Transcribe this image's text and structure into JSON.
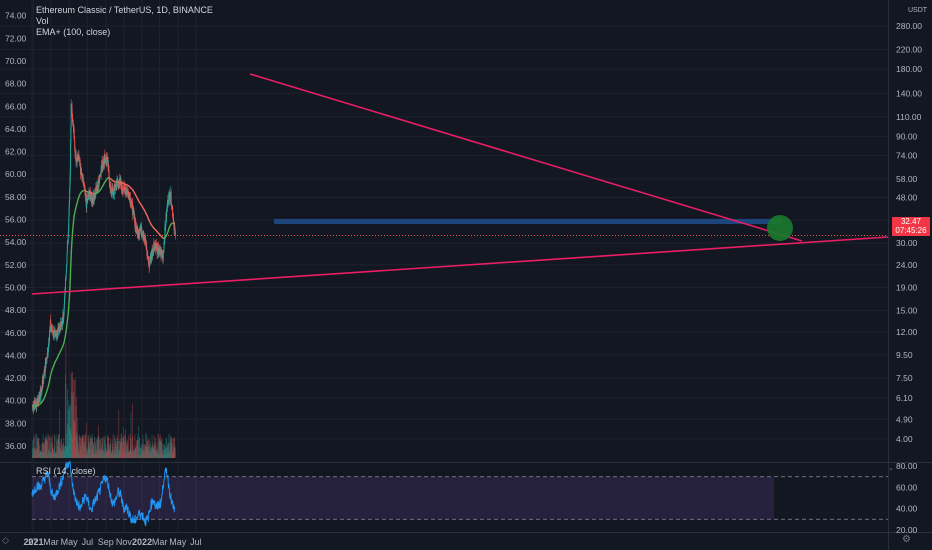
{
  "legend": {
    "title": "Ethereum Classic / TetherUS, 1D, BINANCE",
    "vol": "Vol",
    "ema": "EMA+ (100, close)"
  },
  "price_scale": {
    "currency": "USDT",
    "last_price": "32.47",
    "countdown": "07:45:26"
  },
  "rsi_legend": "RSI (14, close)",
  "colors": {
    "background": "#131722",
    "up": "#26a69a",
    "down": "#ef5350",
    "trendline": "#e91e63",
    "ema_up": "#4caf50",
    "ema_down": "#ef6c5a",
    "support_zone": "#1e4e8c",
    "rsi_line": "#2196f3",
    "rsi_band": "#7e57c2",
    "marker": "#1b7a2e"
  },
  "chart_data": [
    {
      "type": "candlestick",
      "title": "Ethereum Classic / TetherUS, 1D, BINANCE",
      "x_tick_labels": [
        "27",
        "2021",
        "Mar",
        "May",
        "Jul",
        "Sep",
        "Nov",
        "2022",
        "Mar",
        "May",
        "Jul"
      ],
      "left_axis_ticks": [
        36.0,
        38.0,
        40.0,
        42.0,
        44.0,
        46.0,
        48.0,
        50.0,
        52.0,
        54.0,
        56.0,
        58.0,
        60.0,
        62.0,
        64.0,
        66.0,
        68.0,
        70.0,
        72.0,
        74.0
      ],
      "left_axis_labels": [
        "36.00",
        "38.00",
        "40.00",
        "42.00",
        "44.00",
        "46.00",
        "48.00",
        "50.00",
        "52.00",
        "54.00",
        "56.00",
        "58.00",
        "60.00",
        "62.00",
        "64.00",
        "66.00",
        "68.00",
        "70.00",
        "72.00",
        "74.00"
      ],
      "right_axis_log_scale": true,
      "right_axis_labels": [
        "4.00",
        "4.90",
        "6.10",
        "7.50",
        "9.50",
        "12.00",
        "15.00",
        "19.00",
        "24.00",
        "30.00",
        "38.00",
        "48.00",
        "58.00",
        "74.00",
        "90.00",
        "110.00",
        "140.00",
        "180.00",
        "220.00",
        "280.00"
      ],
      "right_axis_values": [
        4.0,
        4.9,
        6.1,
        7.5,
        9.5,
        12.0,
        15.0,
        19.0,
        24.0,
        30.0,
        38.0,
        48.0,
        58.0,
        74.0,
        90.0,
        110.0,
        140.0,
        180.0,
        220.0,
        280.0
      ],
      "last_price": 32.47,
      "close_series": {
        "dates": [
          "2020-12-27",
          "2021-01-05",
          "2021-01-15",
          "2021-01-25",
          "2021-02-05",
          "2021-02-15",
          "2021-02-25",
          "2021-03-05",
          "2021-03-15",
          "2021-03-25",
          "2021-04-05",
          "2021-04-12",
          "2021-04-19",
          "2021-04-26",
          "2021-05-03",
          "2021-05-06",
          "2021-05-10",
          "2021-05-15",
          "2021-05-20",
          "2021-05-30",
          "2021-06-10",
          "2021-06-20",
          "2021-06-26",
          "2021-07-05",
          "2021-07-15",
          "2021-07-25",
          "2021-08-05",
          "2021-08-15",
          "2021-08-25",
          "2021-09-05",
          "2021-09-15",
          "2021-09-25",
          "2021-10-05",
          "2021-10-15",
          "2021-10-25",
          "2021-11-05",
          "2021-11-15",
          "2021-11-25",
          "2021-12-05",
          "2021-12-15",
          "2021-12-25",
          "2022-01-05",
          "2022-01-15",
          "2022-01-22",
          "2022-02-01",
          "2022-02-10",
          "2022-02-20",
          "2022-03-01",
          "2022-03-10",
          "2022-03-20",
          "2022-03-28",
          "2022-04-05",
          "2022-04-15",
          "2022-04-21"
        ],
        "values": [
          5.6,
          5.7,
          6.0,
          6.5,
          8.0,
          9.5,
          13.0,
          12.0,
          11.5,
          12.5,
          13.0,
          15.0,
          23.0,
          33.0,
          65.0,
          130.0,
          110.0,
          95.0,
          70.0,
          75.0,
          60.0,
          52.0,
          45.0,
          50.0,
          47.0,
          50.0,
          55.0,
          65.0,
          72.0,
          70.0,
          52.0,
          50.0,
          55.0,
          56.0,
          53.0,
          52.0,
          50.0,
          45.0,
          38.0,
          33.0,
          35.0,
          33.0,
          28.0,
          24.0,
          27.0,
          30.0,
          28.0,
          27.0,
          26.0,
          38.0,
          48.0,
          50.0,
          38.0,
          32.47
        ]
      },
      "ema_label": "EMA+ (100, close)",
      "support_zone_price": [
        36.5,
        38.5
      ],
      "annotations": [
        "descending trendline from May 2021 high",
        "ascending trendline from Jan 2021",
        "horizontal support zone",
        "green circle marker at last price"
      ]
    },
    {
      "type": "line",
      "title": "RSI (14, close)",
      "y_tick_labels": [
        "20.00",
        "40.00",
        "60.00",
        "80.00"
      ],
      "y_ticks": [
        20,
        40,
        60,
        80
      ],
      "ylim": [
        20,
        80
      ],
      "bands": [
        30,
        70
      ],
      "values": [
        55,
        58,
        62,
        60,
        65,
        70,
        72,
        58,
        50,
        54,
        60,
        66,
        74,
        82,
        84,
        62,
        50,
        44,
        40,
        48,
        52,
        45,
        38,
        46,
        50,
        56,
        62,
        70,
        66,
        54,
        44,
        48,
        56,
        52,
        40,
        42,
        36,
        30,
        28,
        32,
        36,
        34,
        28,
        30,
        42,
        50,
        40,
        44,
        46,
        70,
        76,
        58,
        44,
        38
      ]
    }
  ]
}
